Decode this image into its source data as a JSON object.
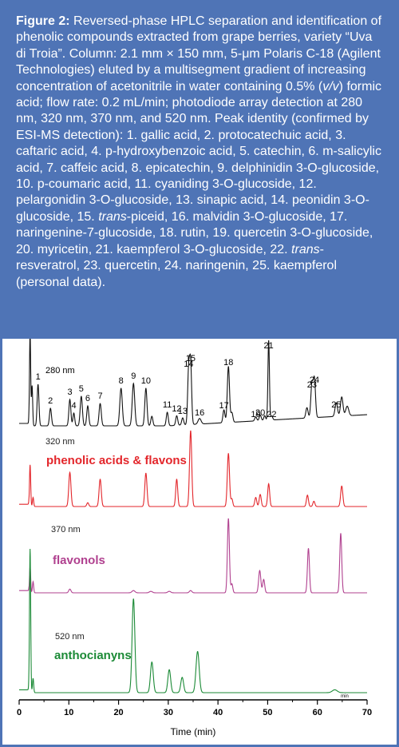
{
  "caption": {
    "lead": "Figure 2:",
    "p1": " Reversed-phase HPLC separation and identification of phenolic compounds extracted from grape berries, variety “Uva di Troia”. Column: 2.1 mm × 150 mm, 5-μm Polaris C-18 (Agilent Technologies) eluted by a multisegment gradient of increasing concentration of acetonitrile in water containing 0.5% (",
    "vv": "v/v",
    "p2": ") formic acid; flow rate: 0.2 mL/min; photodiode array detection at 280 nm, 320 nm, 370 nm, and 520 nm. Peak identity (confirmed by ESI-MS detection): 1. gallic acid, 2. protocatechuic acid, 3. caftaric acid, 4. p-hydroxybenzoic acid, 5. catechin, 6. m-salicylic acid, 7. caffeic acid, 8. epicatechin, 9. delphinidin 3-O-glucoside, 10. p-coumaric acid, 11. cyaniding 3-O-glucoside, 12. pelargonidin 3-O-glucoside, 13. sinapic acid, 14. peonidin 3-O-glucoside, 15. ",
    "trans1": "trans",
    "p3": "-piceid, 16. malvidin 3-O-glucoside, 17. naringenine-7-glucoside, 18. rutin, 19. quercetin 3-O-glucoside, 20. myricetin, 21. kaempferol 3-O-glucoside, 22. ",
    "trans2": "trans",
    "p4": "-resveratrol, 23. quercetin, 24. naringenin, 25. kaempferol (personal data)."
  },
  "colors": {
    "frame": "#4f74b6",
    "black": "#111111",
    "red": "#e3262b",
    "magenta": "#b0408f",
    "green": "#1b8a36"
  },
  "chart_data": {
    "type": "line",
    "xlabel": "Time (min)",
    "xlim": [
      0,
      70
    ],
    "xticks": [
      "0",
      "10",
      "20",
      "30",
      "40",
      "50",
      "60",
      "70"
    ],
    "x_unit_mark": "min",
    "series": [
      {
        "name": "280 nm",
        "color": "#111111",
        "peaks": [
          {
            "t": 2.2,
            "h": 1.15,
            "w": 0.12
          },
          {
            "t": 2.6,
            "h": 0.5,
            "w": 0.12
          },
          {
            "t": 3.8,
            "h": 0.52,
            "w": 0.18,
            "label": "1"
          },
          {
            "t": 6.3,
            "h": 0.22,
            "w": 0.2,
            "label": "2"
          },
          {
            "t": 10.2,
            "h": 0.33,
            "w": 0.2,
            "label": "3"
          },
          {
            "t": 11.0,
            "h": 0.16,
            "w": 0.18,
            "label": "4"
          },
          {
            "t": 12.5,
            "h": 0.37,
            "w": 0.22,
            "label": "5"
          },
          {
            "t": 13.8,
            "h": 0.25,
            "w": 0.2,
            "label": "6"
          },
          {
            "t": 16.3,
            "h": 0.28,
            "w": 0.22,
            "label": "7"
          },
          {
            "t": 20.5,
            "h": 0.47,
            "w": 0.25,
            "label": "8"
          },
          {
            "t": 23.0,
            "h": 0.53,
            "w": 0.25,
            "label": "9"
          },
          {
            "t": 25.5,
            "h": 0.47,
            "w": 0.22,
            "label": "10"
          },
          {
            "t": 26.7,
            "h": 0.12,
            "w": 0.2
          },
          {
            "t": 29.8,
            "h": 0.17,
            "w": 0.2,
            "label": "11"
          },
          {
            "t": 31.7,
            "h": 0.12,
            "w": 0.2,
            "label": "12"
          },
          {
            "t": 32.9,
            "h": 0.09,
            "w": 0.2,
            "label": "13"
          },
          {
            "t": 34.1,
            "h": 0.68,
            "w": 0.2,
            "label": "14"
          },
          {
            "t": 34.5,
            "h": 0.75,
            "w": 0.2,
            "label": "15"
          },
          {
            "t": 36.3,
            "h": 0.07,
            "w": 0.3,
            "label": "16"
          },
          {
            "t": 41.2,
            "h": 0.16,
            "w": 0.2,
            "label": "17"
          },
          {
            "t": 42.1,
            "h": 0.7,
            "w": 0.22,
            "label": "18"
          },
          {
            "t": 42.8,
            "h": 0.12,
            "w": 0.2
          },
          {
            "t": 47.6,
            "h": 0.05,
            "w": 0.2,
            "label": "19"
          },
          {
            "t": 48.5,
            "h": 0.07,
            "w": 0.2,
            "label": "20"
          },
          {
            "t": 49.4,
            "h": 0.06,
            "w": 0.18
          },
          {
            "t": 50.2,
            "h": 1.0,
            "w": 0.15,
            "label": "21"
          },
          {
            "t": 50.8,
            "h": 0.05,
            "w": 0.2,
            "label": "22"
          },
          {
            "t": 57.9,
            "h": 0.13,
            "w": 0.22
          },
          {
            "t": 58.9,
            "h": 0.42,
            "w": 0.22,
            "label": "23"
          },
          {
            "t": 59.4,
            "h": 0.48,
            "w": 0.22,
            "label": "24"
          },
          {
            "t": 63.8,
            "h": 0.17,
            "w": 0.25,
            "label": "25"
          },
          {
            "t": 64.9,
            "h": 0.24,
            "w": 0.25
          },
          {
            "t": 66.0,
            "h": 0.12,
            "w": 0.3
          }
        ]
      },
      {
        "name": "320 nm",
        "note": "phenolic acids & flavons",
        "color": "#e3262b",
        "peaks": [
          {
            "t": 2.2,
            "h": 0.55,
            "w": 0.12
          },
          {
            "t": 2.8,
            "h": 0.12,
            "w": 0.12
          },
          {
            "t": 10.2,
            "h": 0.45,
            "w": 0.22
          },
          {
            "t": 13.8,
            "h": 0.05,
            "w": 0.2
          },
          {
            "t": 16.3,
            "h": 0.36,
            "w": 0.22
          },
          {
            "t": 25.5,
            "h": 0.44,
            "w": 0.22
          },
          {
            "t": 31.7,
            "h": 0.36,
            "w": 0.2
          },
          {
            "t": 34.5,
            "h": 1.0,
            "w": 0.22
          },
          {
            "t": 42.1,
            "h": 0.7,
            "w": 0.22
          },
          {
            "t": 42.8,
            "h": 0.1,
            "w": 0.18
          },
          {
            "t": 47.6,
            "h": 0.12,
            "w": 0.2
          },
          {
            "t": 48.5,
            "h": 0.16,
            "w": 0.2
          },
          {
            "t": 50.2,
            "h": 0.3,
            "w": 0.2
          },
          {
            "t": 58.0,
            "h": 0.15,
            "w": 0.2
          },
          {
            "t": 59.3,
            "h": 0.07,
            "w": 0.2
          },
          {
            "t": 64.9,
            "h": 0.27,
            "w": 0.22
          }
        ]
      },
      {
        "name": "370 nm",
        "note": "flavonols",
        "color": "#b0408f",
        "peaks": [
          {
            "t": 2.2,
            "h": 0.35,
            "w": 0.12
          },
          {
            "t": 2.8,
            "h": 0.15,
            "w": 0.12
          },
          {
            "t": 10.2,
            "h": 0.05,
            "w": 0.22
          },
          {
            "t": 23.0,
            "h": 0.03,
            "w": 0.3
          },
          {
            "t": 26.5,
            "h": 0.02,
            "w": 0.3
          },
          {
            "t": 30.2,
            "h": 0.02,
            "w": 0.3
          },
          {
            "t": 34.5,
            "h": 0.03,
            "w": 0.25
          },
          {
            "t": 42.1,
            "h": 1.0,
            "w": 0.2
          },
          {
            "t": 42.8,
            "h": 0.12,
            "w": 0.18
          },
          {
            "t": 48.4,
            "h": 0.3,
            "w": 0.22
          },
          {
            "t": 49.2,
            "h": 0.18,
            "w": 0.2
          },
          {
            "t": 58.2,
            "h": 0.6,
            "w": 0.2
          },
          {
            "t": 64.7,
            "h": 0.8,
            "w": 0.2
          }
        ]
      },
      {
        "name": "520 nm",
        "note": "anthocianyns",
        "color": "#1b8a36",
        "peaks": [
          {
            "t": 2.2,
            "h": 1.5,
            "w": 0.12
          },
          {
            "t": 2.8,
            "h": 0.15,
            "w": 0.12
          },
          {
            "t": 23.0,
            "h": 0.98,
            "w": 0.28
          },
          {
            "t": 26.7,
            "h": 0.32,
            "w": 0.28
          },
          {
            "t": 30.2,
            "h": 0.24,
            "w": 0.28
          },
          {
            "t": 32.8,
            "h": 0.16,
            "w": 0.28
          },
          {
            "t": 35.9,
            "h": 0.43,
            "w": 0.32
          },
          {
            "t": 63.5,
            "h": 0.03,
            "w": 0.5
          }
        ]
      }
    ]
  }
}
